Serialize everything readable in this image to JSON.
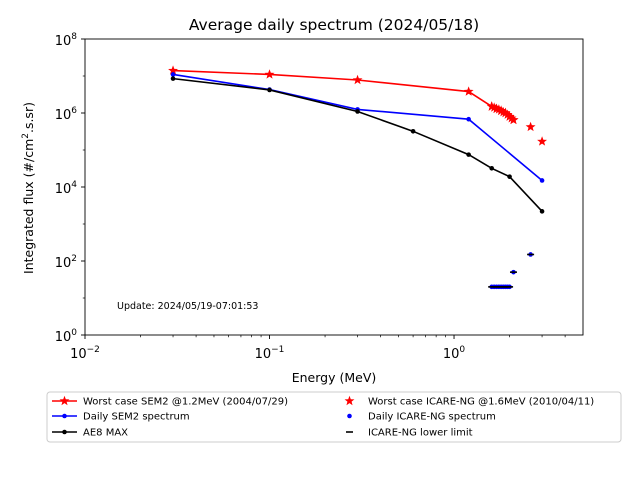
{
  "chart_data": {
    "type": "line",
    "title": "Average daily spectrum (2024/05/18)",
    "xlabel": "Energy (MeV)",
    "ylabel_main": "Integrated flux (#/cm",
    "ylabel_sup": "2",
    "ylabel_tail": ".s.sr)",
    "x_scale": "log",
    "y_scale": "log",
    "xlim": [
      0.01,
      5
    ],
    "ylim": [
      1,
      100000000
    ],
    "x_ticks": [
      {
        "value": 0.01,
        "base": "10",
        "exp": "−2"
      },
      {
        "value": 0.1,
        "base": "10",
        "exp": "−1"
      },
      {
        "value": 1,
        "base": "10",
        "exp": "0"
      }
    ],
    "y_ticks": [
      {
        "value": 1,
        "base": "10",
        "exp": "0"
      },
      {
        "value": 100,
        "base": "10",
        "exp": "2"
      },
      {
        "value": 10000,
        "base": "10",
        "exp": "4"
      },
      {
        "value": 1000000,
        "base": "10",
        "exp": "6"
      },
      {
        "value": 100000000,
        "base": "10",
        "exp": "8"
      }
    ],
    "annotation": "Update: 2024/05/19-07:01:53",
    "series": [
      {
        "name": "Worst case SEM2 @1.2MeV (2004/07/29)",
        "color": "#ff0000",
        "marker": "star",
        "line": true,
        "x": [
          0.03,
          0.1,
          0.3,
          1.2,
          1.6,
          1.7,
          1.8,
          1.9,
          2.0,
          2.1
        ],
        "y": [
          14000000,
          11000000,
          7800000,
          3800000,
          1500000,
          1300000,
          1150000,
          1000000,
          800000,
          650000
        ]
      },
      {
        "name": "Daily SEM2 spectrum",
        "color": "#0000ff",
        "marker": "dot",
        "line": true,
        "x": [
          0.03,
          0.1,
          0.3,
          1.2,
          3.0
        ],
        "y": [
          11000000,
          4300000,
          1250000,
          680000,
          15000
        ]
      },
      {
        "name": "AE8 MAX",
        "color": "#000000",
        "marker": "dot",
        "line": true,
        "x": [
          0.03,
          0.1,
          0.3,
          0.6,
          1.2,
          1.6,
          2.0,
          3.0
        ],
        "y": [
          8500000,
          4200000,
          1100000,
          320000,
          75000,
          32000,
          19000,
          2200
        ]
      },
      {
        "name": "Worst case ICARE-NG @1.6MeV (2010/04/11)",
        "color": "#ff0000",
        "marker": "star",
        "line": false,
        "x": [
          1.6,
          1.65,
          1.7,
          1.75,
          1.8,
          1.85,
          1.9,
          1.95,
          2.0,
          2.05,
          2.1,
          2.6,
          3.0
        ],
        "y": [
          1500000,
          1400000,
          1300000,
          1250000,
          1150000,
          1050000,
          1000000,
          900000,
          800000,
          720000,
          650000,
          420000,
          170000
        ]
      },
      {
        "name": "Daily ICARE-NG spectrum",
        "color": "#0000ff",
        "marker": "dot",
        "line": false,
        "x": [
          1.6,
          1.65,
          1.7,
          1.75,
          1.8,
          1.85,
          1.9,
          1.95,
          2.0,
          2.1,
          2.6
        ],
        "y": [
          20,
          20,
          20,
          20,
          20,
          20,
          20,
          20,
          20,
          50,
          150
        ]
      },
      {
        "name": "ICARE-NG lower limit",
        "color": "#000000",
        "marker": "dash",
        "line": false,
        "x": [
          1.6,
          1.65,
          1.7,
          1.75,
          1.8,
          1.85,
          1.9,
          1.95,
          2.0,
          2.1,
          2.6
        ],
        "y": [
          20,
          20,
          20,
          20,
          20,
          20,
          20,
          20,
          20,
          50,
          150
        ]
      }
    ],
    "legend": {
      "placement": "bottom",
      "order": [
        0,
        3,
        1,
        4,
        2,
        5
      ]
    }
  }
}
